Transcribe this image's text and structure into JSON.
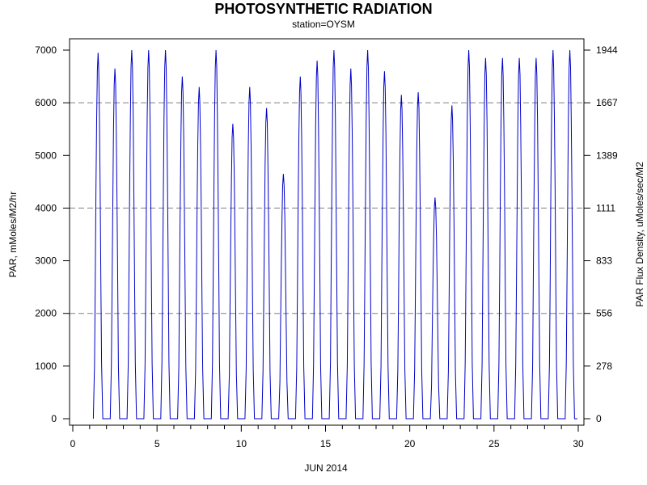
{
  "chart_data": {
    "type": "line",
    "title": "PHOTOSYNTHETIC RADIATION",
    "subtitle": "station=OYSM",
    "xlabel": "JUN 2014",
    "ylabel": "PAR, mMoles/M2/hr",
    "y2label": "PAR Flux Density, uMoles/sec/M2",
    "xlim": [
      0,
      30
    ],
    "ylim": [
      0,
      7000
    ],
    "x_major_ticks": [
      0,
      5,
      10,
      15,
      20,
      25,
      30
    ],
    "x_minor_step": 1,
    "y_ticks": [
      0,
      1000,
      2000,
      3000,
      4000,
      5000,
      6000,
      7000
    ],
    "y2_ticks": [
      "0",
      "278",
      "556",
      "833",
      "1111",
      "1389",
      "1667",
      "1944"
    ],
    "grid_y": [
      2000,
      4000,
      6000
    ],
    "line_color": "#0000c8",
    "daily_peaks": [
      {
        "day": 1,
        "peak": 6950
      },
      {
        "day": 2,
        "peak": 6650
      },
      {
        "day": 3,
        "peak": 7000
      },
      {
        "day": 4,
        "peak": 7000
      },
      {
        "day": 5,
        "peak": 7000
      },
      {
        "day": 6,
        "peak": 6500
      },
      {
        "day": 7,
        "peak": 6300
      },
      {
        "day": 8,
        "peak": 7000
      },
      {
        "day": 9,
        "peak": 5600
      },
      {
        "day": 10,
        "peak": 6300
      },
      {
        "day": 11,
        "peak": 5900
      },
      {
        "day": 12,
        "peak": 4650
      },
      {
        "day": 13,
        "peak": 6500
      },
      {
        "day": 14,
        "peak": 6800
      },
      {
        "day": 15,
        "peak": 7000
      },
      {
        "day": 16,
        "peak": 6650
      },
      {
        "day": 17,
        "peak": 7000
      },
      {
        "day": 18,
        "peak": 6600
      },
      {
        "day": 19,
        "peak": 6150
      },
      {
        "day": 20,
        "peak": 6200
      },
      {
        "day": 21,
        "peak": 4200
      },
      {
        "day": 22,
        "peak": 5950
      },
      {
        "day": 23,
        "peak": 7000
      },
      {
        "day": 24,
        "peak": 6850
      },
      {
        "day": 25,
        "peak": 6850
      },
      {
        "day": 26,
        "peak": 6850
      },
      {
        "day": 27,
        "peak": 6850
      },
      {
        "day": 28,
        "peak": 7000
      },
      {
        "day": 29,
        "peak": 7000
      }
    ]
  }
}
